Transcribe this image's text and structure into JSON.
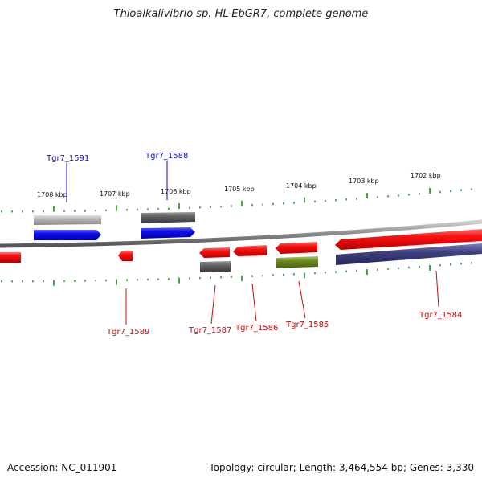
{
  "title": "Thioalkalivibrio sp. HL-EbGR7, complete genome",
  "footer": {
    "accession": "Accession: NC_011901",
    "summary": "Topology: circular; Length: 3,464,554 bp; Genes: 3,330"
  },
  "ruler": {
    "labels": [
      "1708 kbp",
      "1707 kbp",
      "1706 kbp",
      "1705 kbp",
      "1704 kbp",
      "1703 kbp",
      "1702 kbp"
    ]
  },
  "gene_labels": [
    {
      "name": "Tgr7_1591",
      "strand": "forward"
    },
    {
      "name": "Tgr7_1588",
      "strand": "forward"
    },
    {
      "name": "Tgr7_1589",
      "strand": "reverse"
    },
    {
      "name": "Tgr7_1587",
      "strand": "reverse"
    },
    {
      "name": "Tgr7_1586",
      "strand": "reverse"
    },
    {
      "name": "Tgr7_1585",
      "strand": "reverse"
    },
    {
      "name": "Tgr7_1584",
      "strand": "reverse"
    }
  ],
  "colors": {
    "forward_label": "#1010c0",
    "reverse_label": "#c01010",
    "ticks": "#1a8a1a",
    "backbone": "#8a8a8a",
    "gene_red": "#f01010",
    "gene_blue": "#1010f0",
    "gene_gray_light": "#b0b0b0",
    "gene_gray_dark": "#606060",
    "gene_olive": "#6a8a20",
    "gene_navy": "#404080"
  }
}
